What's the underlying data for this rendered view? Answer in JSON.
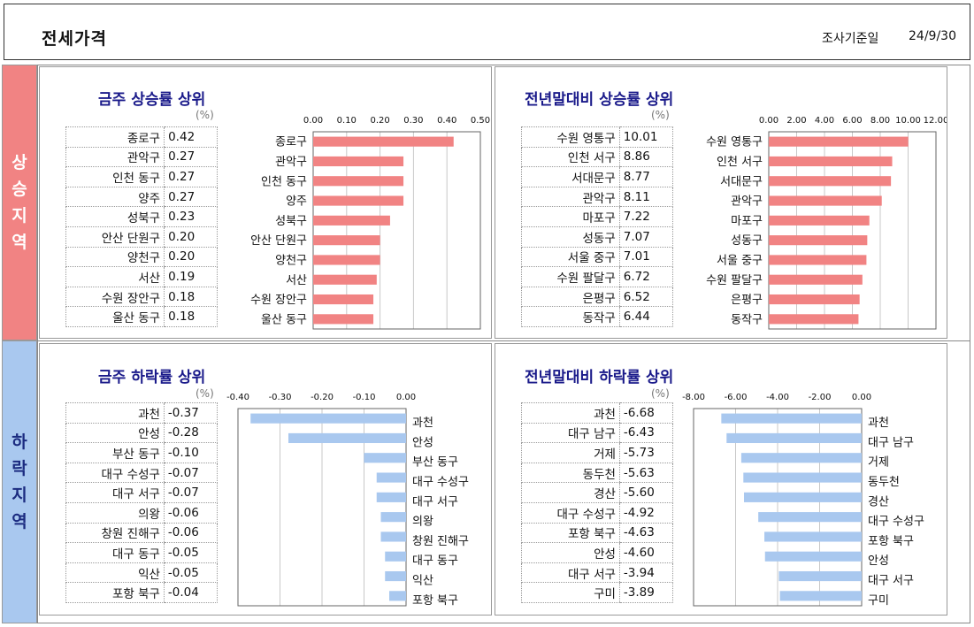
{
  "header": {
    "title": "전세가격",
    "date_label": "조사기준일",
    "date_value": "24/9/30"
  },
  "bands": {
    "rise": "상\n승\n지\n역",
    "fall": "하\n락\n지\n역"
  },
  "colors": {
    "rise_bar": "#f18383",
    "fall_bar": "#a9c8ef",
    "title": "#1a1a8a"
  },
  "panels": {
    "weekly_rise": {
      "title": "금주 상승률 상위",
      "unit": "(%)"
    },
    "ytd_rise": {
      "title": "전년말대비 상승률 상위",
      "unit": "(%)"
    },
    "weekly_fall": {
      "title": "금주 하락률 상위",
      "unit": "(%)"
    },
    "ytd_fall": {
      "title": "전년말대비 하락률 상위",
      "unit": "(%)"
    }
  },
  "chart_data": [
    {
      "id": "weekly_rise",
      "type": "bar",
      "orientation": "horizontal",
      "categories": [
        "종로구",
        "관악구",
        "인천 동구",
        "양주",
        "성북구",
        "안산 단원구",
        "양천구",
        "서산",
        "수원 장안구",
        "울산 동구"
      ],
      "values": [
        0.42,
        0.27,
        0.27,
        0.27,
        0.23,
        0.2,
        0.2,
        0.19,
        0.18,
        0.18
      ],
      "value_labels": [
        "0.42",
        "0.27",
        "0.27",
        "0.27",
        "0.23",
        "0.20",
        "0.20",
        "0.19",
        "0.18",
        "0.18"
      ],
      "xlim": [
        0,
        0.5
      ],
      "ticks": [
        "0.00",
        "0.10",
        "0.20",
        "0.30",
        "0.40",
        "0.50"
      ],
      "tick_values": [
        0,
        0.1,
        0.2,
        0.3,
        0.4,
        0.5
      ],
      "grid": true
    },
    {
      "id": "ytd_rise",
      "type": "bar",
      "orientation": "horizontal",
      "categories": [
        "수원 영통구",
        "인천 서구",
        "서대문구",
        "관악구",
        "마포구",
        "성동구",
        "서울 중구",
        "수원 팔달구",
        "은평구",
        "동작구"
      ],
      "values": [
        10.01,
        8.86,
        8.77,
        8.11,
        7.22,
        7.07,
        7.01,
        6.72,
        6.52,
        6.44
      ],
      "value_labels": [
        "10.01",
        "8.86",
        "8.77",
        "8.11",
        "7.22",
        "7.07",
        "7.01",
        "6.72",
        "6.52",
        "6.44"
      ],
      "xlim": [
        0,
        12
      ],
      "ticks": [
        "0.00",
        "2.00",
        "4.00",
        "6.00",
        "8.00",
        "10.00",
        "12.00"
      ],
      "tick_values": [
        0,
        2,
        4,
        6,
        8,
        10,
        12
      ],
      "grid": true
    },
    {
      "id": "weekly_fall",
      "type": "bar",
      "orientation": "horizontal",
      "categories": [
        "과천",
        "안성",
        "부산 동구",
        "대구 수성구",
        "대구 서구",
        "의왕",
        "창원 진해구",
        "대구 동구",
        "익산",
        "포항 북구"
      ],
      "values": [
        -0.37,
        -0.28,
        -0.1,
        -0.07,
        -0.07,
        -0.06,
        -0.06,
        -0.05,
        -0.05,
        -0.04
      ],
      "value_labels": [
        "-0.37",
        "-0.28",
        "-0.10",
        "-0.07",
        "-0.07",
        "-0.06",
        "-0.06",
        "-0.05",
        "-0.05",
        "-0.04"
      ],
      "xlim": [
        -0.4,
        0
      ],
      "ticks": [
        "-0.40",
        "-0.30",
        "-0.20",
        "-0.10",
        "0.00"
      ],
      "tick_values": [
        -0.4,
        -0.3,
        -0.2,
        -0.1,
        0
      ],
      "grid": true
    },
    {
      "id": "ytd_fall",
      "type": "bar",
      "orientation": "horizontal",
      "categories": [
        "과천",
        "대구 남구",
        "거제",
        "동두천",
        "경산",
        "대구 수성구",
        "포항 북구",
        "안성",
        "대구 서구",
        "구미"
      ],
      "values": [
        -6.68,
        -6.43,
        -5.73,
        -5.63,
        -5.6,
        -4.92,
        -4.63,
        -4.6,
        -3.94,
        -3.89
      ],
      "value_labels": [
        "-6.68",
        "-6.43",
        "-5.73",
        "-5.63",
        "-5.60",
        "-4.92",
        "-4.63",
        "-4.60",
        "-3.94",
        "-3.89"
      ],
      "xlim": [
        -8,
        0
      ],
      "ticks": [
        "-8.00",
        "-6.00",
        "-4.00",
        "-2.00",
        "0.00"
      ],
      "tick_values": [
        -8,
        -6,
        -4,
        -2,
        0
      ],
      "grid": true
    }
  ]
}
